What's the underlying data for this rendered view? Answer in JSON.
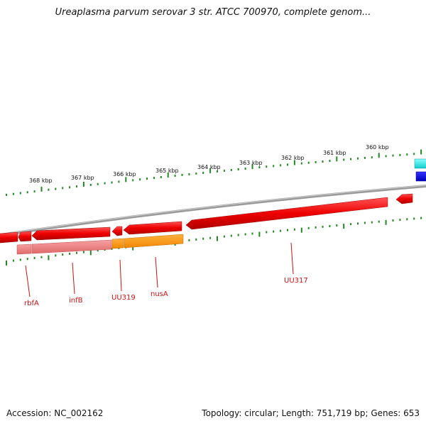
{
  "title": "Ureaplasma parvum serovar 3 str. ATCC 700970, complete genom...",
  "accession": "Accession: NC_002162",
  "topology": "Topology: circular; Length: 751,719 bp; Genes: 653",
  "ruler_labels": [
    "368 kbp",
    "367 kbp",
    "366 kbp",
    "365 kbp",
    "364 kbp",
    "363 kbp",
    "362 kbp",
    "361 kbp",
    "360 kbp"
  ],
  "gene_labels": [
    "rbfA",
    "infB",
    "UU319",
    "nusA",
    "UU317"
  ],
  "colors": {
    "backbone": "#8a8a8a",
    "tick": "#228822",
    "cds": "#ee1111",
    "gene": "#f08080",
    "highlight": "#ff9900",
    "label": "#cc1111",
    "cyan": "#22dddd",
    "blue": "#0000ee"
  }
}
